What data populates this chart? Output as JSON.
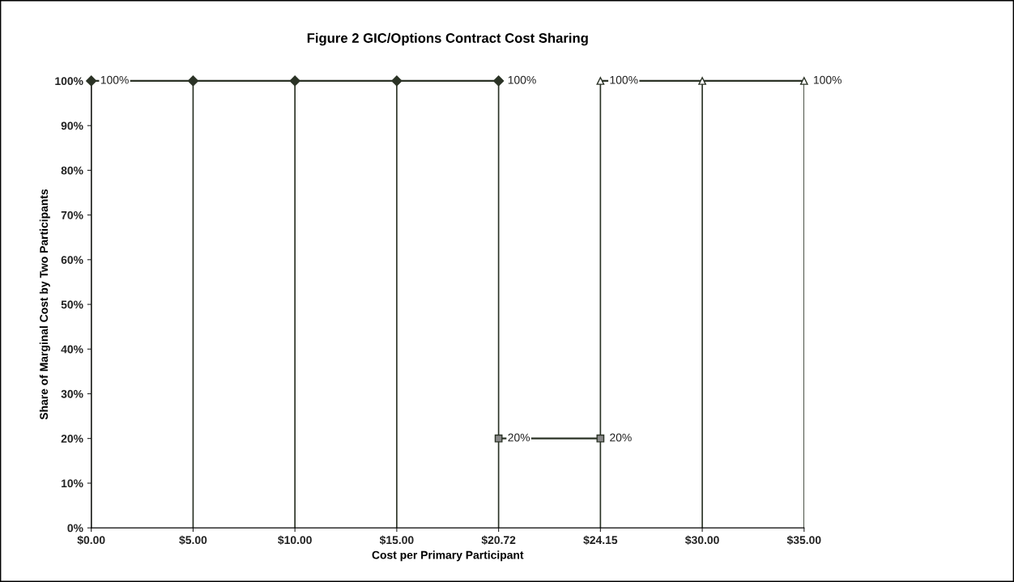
{
  "chart_data": {
    "type": "line",
    "title": "Figure 2 GIC/Options Contract Cost Sharing",
    "xlabel": "Cost per Primary Participant",
    "ylabel": "Share of Marginal Cost by Two Participants",
    "categories": [
      "$0.00",
      "$5.00",
      "$10.00",
      "$15.00",
      "$20.72",
      "$24.15",
      "$30.00",
      "$35.00"
    ],
    "series": [
      {
        "color": "#2b3326",
        "marker": "diamond",
        "values": [
          100,
          100,
          100,
          100,
          100,
          null,
          null,
          null
        ],
        "value_labels": [
          "100%",
          null,
          null,
          null,
          "100%",
          null,
          null,
          null
        ]
      },
      {
        "color": "#2b3326",
        "marker": "triangle",
        "values": [
          null,
          null,
          null,
          null,
          null,
          100,
          100,
          100
        ],
        "value_labels": [
          null,
          null,
          null,
          null,
          null,
          "100%",
          null,
          "100%"
        ]
      },
      {
        "color": "#2b3326",
        "marker": "square",
        "values": [
          null,
          null,
          null,
          null,
          20,
          20,
          null,
          null
        ],
        "value_labels": [
          null,
          null,
          null,
          null,
          "20%",
          "20%",
          null,
          null
        ]
      }
    ],
    "ylim": [
      0,
      100
    ],
    "yticks": [
      {
        "value": 0,
        "label": "0%"
      },
      {
        "value": 10,
        "label": "10%"
      },
      {
        "value": 20,
        "label": "20%"
      },
      {
        "value": 30,
        "label": "30%"
      },
      {
        "value": 40,
        "label": "40%"
      },
      {
        "value": 50,
        "label": "50%"
      },
      {
        "value": 60,
        "label": "60%"
      },
      {
        "value": 70,
        "label": "70%"
      },
      {
        "value": 80,
        "label": "80%"
      },
      {
        "value": 90,
        "label": "90%"
      },
      {
        "value": 100,
        "label": "100%"
      }
    ],
    "grid": "x",
    "legend": false,
    "line_style": "solid"
  }
}
